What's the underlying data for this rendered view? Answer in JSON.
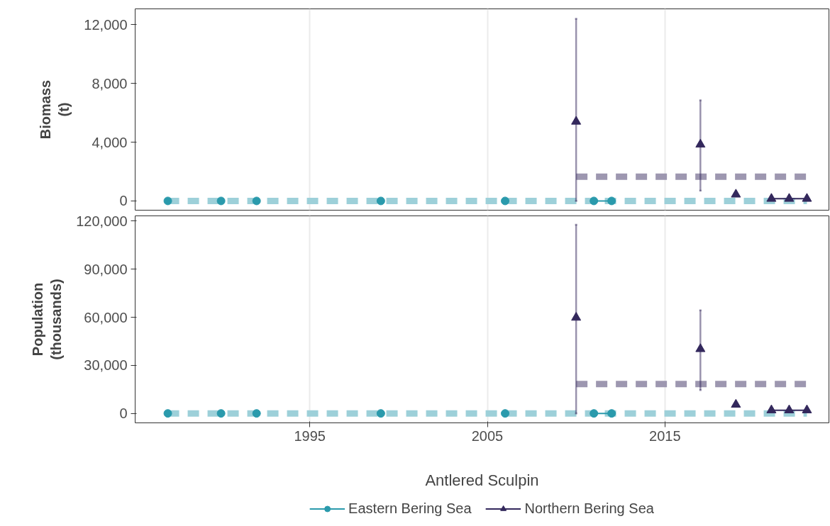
{
  "chart_data": [
    {
      "type": "line",
      "ylabel": "Biomass\n(t)",
      "xlim": [
        1985.16,
        2024.24
      ],
      "xticks": [
        1995,
        2005,
        2015
      ],
      "ylim": [
        -630,
        13070
      ],
      "yticks": [
        0,
        {
          "value": 4000,
          "label": "4,000"
        },
        {
          "value": 8000,
          "label": "8,000"
        },
        {
          "value": 12000,
          "label": "12,000"
        }
      ],
      "grid": "x",
      "tick_labels": "y",
      "legend": "bottom",
      "series": [
        {
          "type": "line",
          "line_style": "dashed",
          "color": "#9dd0d9",
          "x": [
            1987,
            2023
          ],
          "values": [
            0,
            0
          ]
        },
        {
          "type": "line",
          "line_style": "dashed",
          "color": "#9d97b0",
          "x": [
            2010,
            2023
          ],
          "values": [
            1650,
            1650
          ]
        },
        {
          "type": "line",
          "line_style": "solid",
          "marker": "circle",
          "name": "Eastern Bering Sea",
          "color": "#2a9aac",
          "x": [
            1987,
            1988,
            1990,
            1991,
            1992,
            1993,
            1999,
            2000,
            2006,
            2007,
            2011,
            2012
          ],
          "values": [
            0,
            null,
            0,
            null,
            0,
            null,
            0,
            null,
            0,
            null,
            0,
            0
          ]
        },
        {
          "type": "line",
          "line_style": "solid",
          "marker": "triangle",
          "name": "Northern Bering Sea",
          "color": "#33285c",
          "x": [
            2010,
            2011,
            2017,
            2018,
            2019,
            2020,
            2021,
            2022,
            2023
          ],
          "values": [
            5400,
            null,
            3840,
            null,
            440,
            null,
            150,
            150,
            150
          ],
          "errors": [
            [
              0,
              12400
            ],
            null,
            [
              700,
              6850
            ],
            null,
            null,
            null,
            null,
            null,
            null
          ]
        }
      ]
    },
    {
      "type": "line",
      "ylabel": "Population\n(thousands)",
      "xlabel": "Antlered Sculpin",
      "xlim": [
        1985.16,
        2024.24
      ],
      "xticks": [
        1995,
        2005,
        2015
      ],
      "ylim": [
        -5900,
        123300
      ],
      "yticks": [
        0,
        {
          "value": 30000,
          "label": "30,000"
        },
        {
          "value": 60000,
          "label": "60,000"
        },
        {
          "value": 90000,
          "label": "90,000"
        },
        {
          "value": 120000,
          "label": "120,000"
        }
      ],
      "grid": "x",
      "legend": "bottom",
      "series": [
        {
          "type": "line",
          "line_style": "dashed",
          "color": "#9dd0d9",
          "x": [
            1987,
            2023
          ],
          "values": [
            0,
            0
          ]
        },
        {
          "type": "line",
          "line_style": "dashed",
          "color": "#9d97b0",
          "x": [
            2010,
            2023
          ],
          "values": [
            18300,
            18300
          ]
        },
        {
          "type": "line",
          "line_style": "solid",
          "marker": "circle",
          "name": "Eastern Bering Sea",
          "color": "#2a9aac",
          "x": [
            1987,
            1988,
            1990,
            1991,
            1992,
            1993,
            1999,
            2000,
            2006,
            2007,
            2011,
            2012
          ],
          "values": [
            0,
            null,
            0,
            null,
            0,
            null,
            0,
            null,
            0,
            null,
            0,
            0
          ]
        },
        {
          "type": "line",
          "line_style": "solid",
          "marker": "triangle",
          "name": "Northern Bering Sea",
          "color": "#33285c",
          "x": [
            2010,
            2011,
            2017,
            2018,
            2019,
            2020,
            2021,
            2022,
            2023
          ],
          "values": [
            59800,
            null,
            40200,
            null,
            5500,
            null,
            2000,
            2000,
            2000
          ],
          "errors": [
            [
              0,
              117800
            ],
            null,
            [
              14600,
              64300
            ],
            null,
            null,
            null,
            null,
            null,
            null
          ]
        }
      ]
    }
  ]
}
